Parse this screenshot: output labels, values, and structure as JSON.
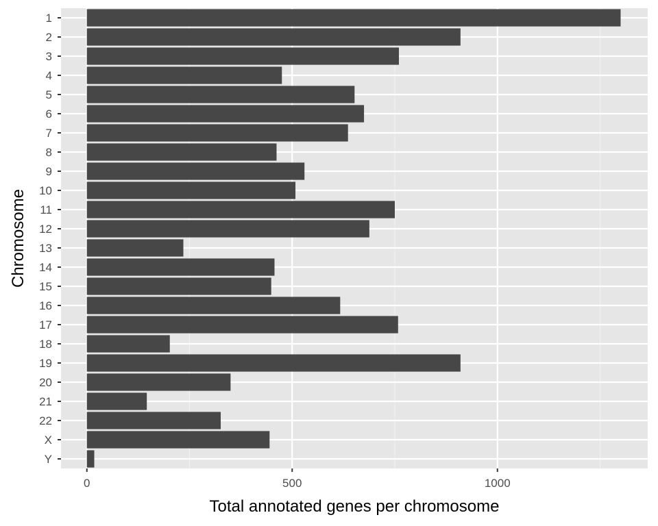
{
  "chart_data": {
    "type": "bar",
    "orientation": "horizontal",
    "categories": [
      "1",
      "2",
      "3",
      "4",
      "5",
      "6",
      "7",
      "8",
      "9",
      "10",
      "11",
      "12",
      "13",
      "14",
      "15",
      "16",
      "17",
      "18",
      "19",
      "20",
      "21",
      "22",
      "X",
      "Y"
    ],
    "values": [
      1300,
      910,
      760,
      475,
      652,
      675,
      636,
      462,
      530,
      508,
      750,
      688,
      235,
      457,
      449,
      617,
      758,
      202,
      910,
      350,
      146,
      326,
      445,
      18
    ],
    "xlabel": "Total annotated genes per chromosome",
    "ylabel": "Chromosome",
    "xlim": [
      -63,
      1366
    ],
    "x_ticks": [
      0,
      500,
      1000
    ],
    "x_minor_ticks": [
      250,
      750,
      1250
    ],
    "grid": true,
    "colors": {
      "bar": "#474747",
      "panel": "#e6e6e6",
      "grid_major": "#ffffff",
      "grid_minor": "#f2f2f2",
      "tick_text": "#4d4d4d",
      "tick_mark": "#333333",
      "title_text": "#000000"
    }
  }
}
